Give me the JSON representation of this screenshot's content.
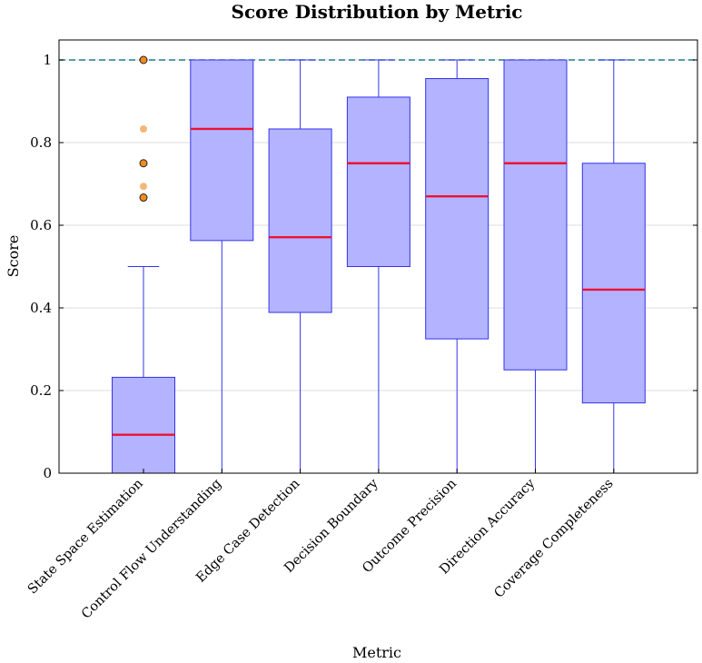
{
  "chart_data": {
    "type": "box",
    "title": "Score Distribution by Metric",
    "xlabel": "Metric",
    "ylabel": "Score",
    "ylim": [
      0,
      1.05
    ],
    "yticks": [
      0,
      0.2,
      0.4,
      0.6,
      0.8,
      1
    ],
    "ytick_labels": [
      "0",
      "0.2",
      "0.4",
      "0.6",
      "0.8",
      "1"
    ],
    "grid": true,
    "reference_line": {
      "y": 1.0,
      "style": "dashed",
      "color": "#1f7f8c"
    },
    "colors": {
      "box_fill": "#b3b3ff",
      "box_stroke": "#3333ee",
      "median": "#ee1133",
      "outlier": "#f08c1e",
      "outlier_light": "#f3b77a",
      "grid": "#dddddd"
    },
    "categories": [
      "State Space Estimation",
      "Control Flow Understanding",
      "Edge Case Detection",
      "Decision Boundary",
      "Outcome Precision",
      "Direction Accuracy",
      "Coverage Completeness"
    ],
    "boxes": [
      {
        "whisker_low": 0.0,
        "q1": 0.0,
        "median": 0.093,
        "q3": 0.232,
        "whisker_high": 0.5,
        "outliers": [
          {
            "y": 1.0,
            "light": false
          },
          {
            "y": 0.833,
            "light": true
          },
          {
            "y": 0.75,
            "light": false
          },
          {
            "y": 0.694,
            "light": true
          },
          {
            "y": 0.667,
            "light": false
          }
        ]
      },
      {
        "whisker_low": 0.0,
        "q1": 0.563,
        "median": 0.833,
        "q3": 1.0,
        "whisker_high": 1.0,
        "outliers": []
      },
      {
        "whisker_low": 0.0,
        "q1": 0.389,
        "median": 0.571,
        "q3": 0.833,
        "whisker_high": 1.0,
        "outliers": []
      },
      {
        "whisker_low": 0.0,
        "q1": 0.5,
        "median": 0.75,
        "q3": 0.91,
        "whisker_high": 1.0,
        "outliers": []
      },
      {
        "whisker_low": 0.0,
        "q1": 0.325,
        "median": 0.67,
        "q3": 0.955,
        "whisker_high": 1.0,
        "outliers": []
      },
      {
        "whisker_low": 0.0,
        "q1": 0.25,
        "median": 0.75,
        "q3": 1.0,
        "whisker_high": 1.0,
        "outliers": []
      },
      {
        "whisker_low": 0.0,
        "q1": 0.17,
        "median": 0.444,
        "q3": 0.75,
        "whisker_high": 1.0,
        "outliers": []
      }
    ]
  }
}
